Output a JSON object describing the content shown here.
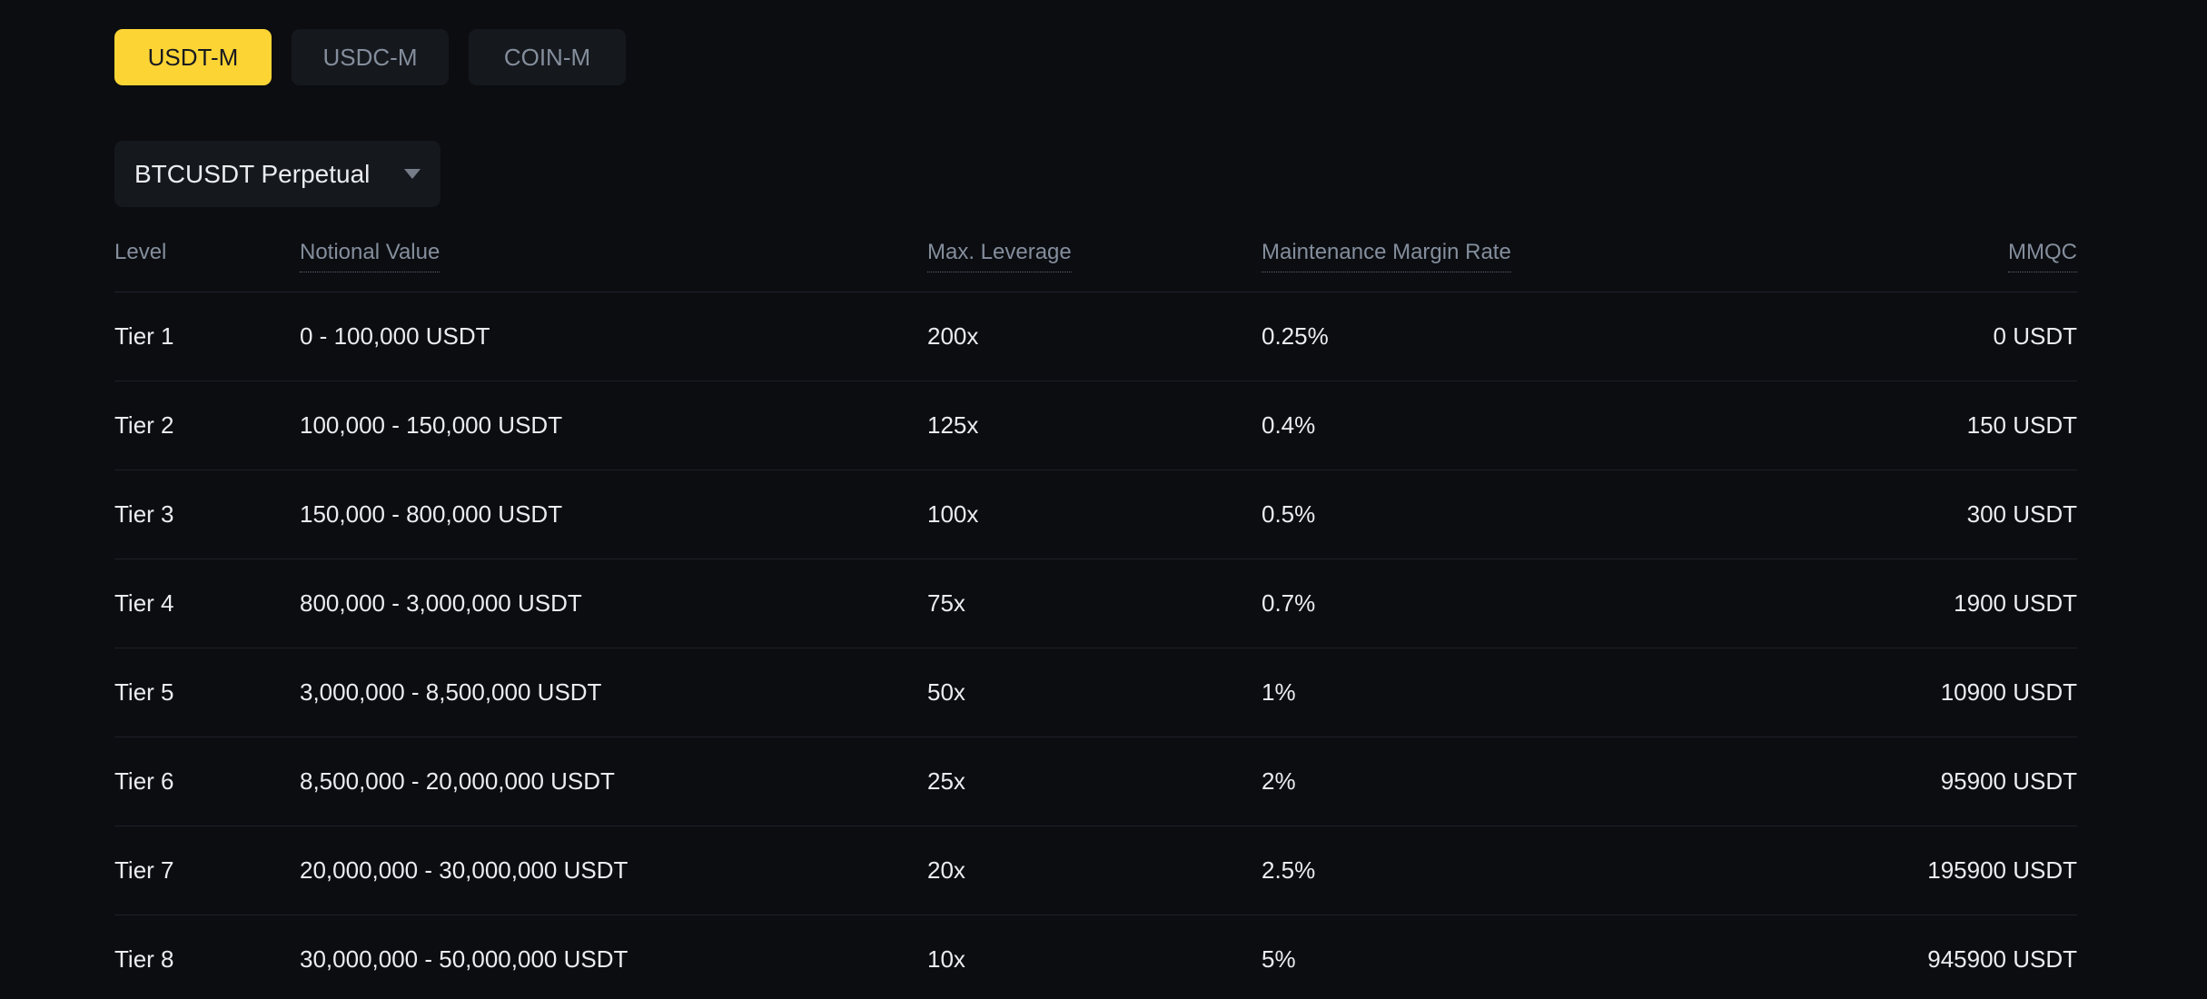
{
  "tabs": [
    {
      "label": "USDT-M",
      "active": true
    },
    {
      "label": "USDC-M",
      "active": false
    },
    {
      "label": "COIN-M",
      "active": false
    }
  ],
  "pair_selector": {
    "value": "BTCUSDT Perpetual"
  },
  "table": {
    "columns": [
      {
        "label": "Level",
        "tooltip": false,
        "align": "left"
      },
      {
        "label": "Notional Value",
        "tooltip": true,
        "align": "left"
      },
      {
        "label": "Max. Leverage",
        "tooltip": true,
        "align": "left"
      },
      {
        "label": "Maintenance Margin Rate",
        "tooltip": true,
        "align": "left"
      },
      {
        "label": "MMQC",
        "tooltip": true,
        "align": "right"
      }
    ],
    "rows": [
      {
        "level": "Tier 1",
        "notional": "0 - 100,000 USDT",
        "leverage": "200x",
        "mmr": "0.25%",
        "mmqc": "0 USDT"
      },
      {
        "level": "Tier 2",
        "notional": "100,000 - 150,000 USDT",
        "leverage": "125x",
        "mmr": "0.4%",
        "mmqc": "150 USDT"
      },
      {
        "level": "Tier 3",
        "notional": "150,000 - 800,000 USDT",
        "leverage": "100x",
        "mmr": "0.5%",
        "mmqc": "300 USDT"
      },
      {
        "level": "Tier 4",
        "notional": "800,000 - 3,000,000 USDT",
        "leverage": "75x",
        "mmr": "0.7%",
        "mmqc": "1900 USDT"
      },
      {
        "level": "Tier 5",
        "notional": "3,000,000 - 8,500,000 USDT",
        "leverage": "50x",
        "mmr": "1%",
        "mmqc": "10900 USDT"
      },
      {
        "level": "Tier 6",
        "notional": "8,500,000 - 20,000,000 USDT",
        "leverage": "25x",
        "mmr": "2%",
        "mmqc": "95900 USDT"
      },
      {
        "level": "Tier 7",
        "notional": "20,000,000 - 30,000,000 USDT",
        "leverage": "20x",
        "mmr": "2.5%",
        "mmqc": "195900 USDT"
      },
      {
        "level": "Tier 8",
        "notional": "30,000,000 - 50,000,000 USDT",
        "leverage": "10x",
        "mmr": "5%",
        "mmqc": "945900 USDT"
      }
    ]
  },
  "colors": {
    "background": "#0b0d11",
    "accent_yellow": "#fcd535",
    "active_tab_text": "#181a20",
    "muted_text": "#848e9c",
    "body_text": "#eaecef",
    "surface": "#15181d"
  }
}
